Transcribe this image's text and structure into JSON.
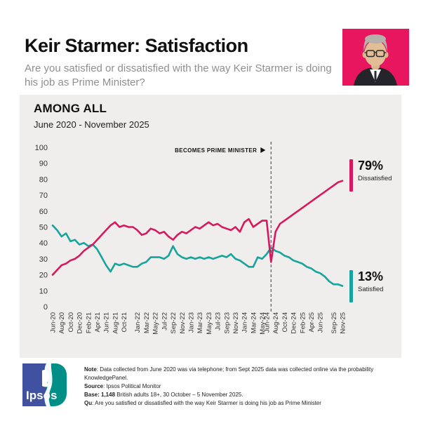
{
  "header": {
    "title": "Keir Starmer: Satisfaction",
    "subtitle": "Are you satisfied or dissatisfied with the way Keir Starmer is doing his job as Prime Minister?"
  },
  "chart": {
    "heading": "AMONG ALL",
    "date_range": "June 2020 - November 2025"
  },
  "chart_data": {
    "type": "line",
    "title": "Keir Starmer: Satisfaction — Among All",
    "xlabel": "",
    "ylabel": "",
    "ylim": [
      0,
      100
    ],
    "y_ticks": [
      100,
      90,
      80,
      70,
      60,
      50,
      40,
      30,
      20,
      10,
      0
    ],
    "grid": false,
    "legend_position": "right-end-labels",
    "x": [
      "Jun-20",
      "Jul-20",
      "Aug-20",
      "Sep-20",
      "Oct-20",
      "Nov-20",
      "Dec-20",
      "Jan-21",
      "Feb-21",
      "Mar-21",
      "Apr-21",
      "May-21",
      "Jun-21",
      "Jul-21",
      "Aug-21",
      "Sep-21",
      "Oct-21",
      "Nov-21",
      "Dec-21",
      "Jan-22",
      "Feb-22",
      "Mar-22",
      "Apr-22",
      "May-22",
      "Jun-22",
      "Jul-22",
      "Aug-22",
      "Sep-22",
      "Oct-22",
      "Nov-22",
      "Dec-22",
      "Jan-23",
      "Feb-23",
      "Mar-23",
      "Apr-23",
      "May-23",
      "Jun-23",
      "Jul-23",
      "Aug-23",
      "Sep-23",
      "Oct-23",
      "Nov-23",
      "Dec-23",
      "Jan-24",
      "Feb-24",
      "Mar-24",
      "Apr-24",
      "May-24",
      "Jun-24",
      "Jul-24",
      "Aug-24",
      "Sep-24",
      "Oct-24",
      "Nov-24",
      "Dec-24",
      "Jan-25",
      "Feb-25",
      "Mar-25",
      "Apr-25",
      "May-25",
      "Jun-25",
      "Jul-25",
      "Aug-25",
      "Sep-25",
      "Oct-25",
      "Nov-25"
    ],
    "x_tick_labels": [
      "Jun-20",
      "Aug-20",
      "Oct-20",
      "Dec-20",
      "Feb-21",
      "Apr-21",
      "Jun-21",
      "Aug-21",
      "Oct-21",
      "Jan-22",
      "Mar-22",
      "May-22",
      "Jul-22",
      "Sep-22",
      "Nov-22",
      "Jan-23",
      "Mar-23",
      "May-23",
      "Jul-23",
      "Sep-23",
      "Nov-23",
      "Jan-24",
      "Mar-24",
      "May-24",
      "Jun-24",
      "Aug-24",
      "Oct-24",
      "Dec-24",
      "Feb-25",
      "Apr-25",
      "Jun-25",
      "Sep-25",
      "Nov-25"
    ],
    "series": [
      {
        "name": "Dissatisfied",
        "color": "#d6195f",
        "values": [
          20,
          23,
          26,
          27,
          29,
          30,
          32,
          35,
          37,
          39,
          42,
          45,
          48,
          51,
          53,
          50,
          51,
          50,
          50,
          48,
          45,
          46,
          49,
          48,
          46,
          47,
          44,
          42,
          45,
          47,
          46,
          48,
          50,
          49,
          51,
          53,
          51,
          52,
          50,
          49,
          48,
          50,
          47,
          53,
          55,
          50,
          52,
          54,
          54,
          28,
          47,
          52,
          54,
          56,
          58,
          60,
          62,
          64,
          66,
          68,
          70,
          72,
          74,
          76,
          78,
          79
        ]
      },
      {
        "name": "Satisfied",
        "color": "#16a49c",
        "values": [
          51,
          48,
          44,
          46,
          41,
          42,
          39,
          40,
          38,
          39,
          36,
          31,
          26,
          22,
          27,
          26,
          27,
          26,
          25,
          25,
          27,
          28,
          31,
          31,
          31,
          30,
          32,
          38,
          33,
          31,
          30,
          31,
          30,
          31,
          30,
          31,
          30,
          31,
          32,
          31,
          33,
          30,
          29,
          27,
          25,
          25,
          31,
          30,
          33,
          37,
          35,
          34,
          32,
          31,
          29,
          28,
          27,
          25,
          24,
          22,
          21,
          19,
          16,
          14,
          14,
          13
        ]
      }
    ],
    "annotation": {
      "text": "BECOMES PRIME MINISTER",
      "arrow": "▶",
      "x": "Jul-24"
    },
    "end_labels": [
      {
        "value": "79%",
        "name": "Dissatisfied",
        "color": "#d6195f"
      },
      {
        "value": "13%",
        "name": "Satisfied",
        "color": "#16a49c"
      }
    ]
  },
  "footer": {
    "logo_text": "Ipsos",
    "notes": [
      {
        "label": "Note",
        "text": ": Data collected from June 2020 was via telephone; from Sept 2025 data was collected online via the probability KnowledgePanel."
      },
      {
        "label": "Source",
        "text": ": Ipsos Political Monitor"
      },
      {
        "label": "Base: 1,148",
        "text": " British adults 18+, 30 October – 5 November 2025."
      },
      {
        "label": "Qu",
        "text": ": Are you satisfied or dissatisfied with the way Keir Starmer is doing his job as Prime Minister"
      }
    ]
  },
  "colors": {
    "dissatisfied": "#d6195f",
    "satisfied": "#16a49c",
    "panel_background": "#efeeec",
    "photo_background": "#e8155f",
    "logo_blue": "#3f51a0",
    "logo_teal": "#008f86"
  }
}
